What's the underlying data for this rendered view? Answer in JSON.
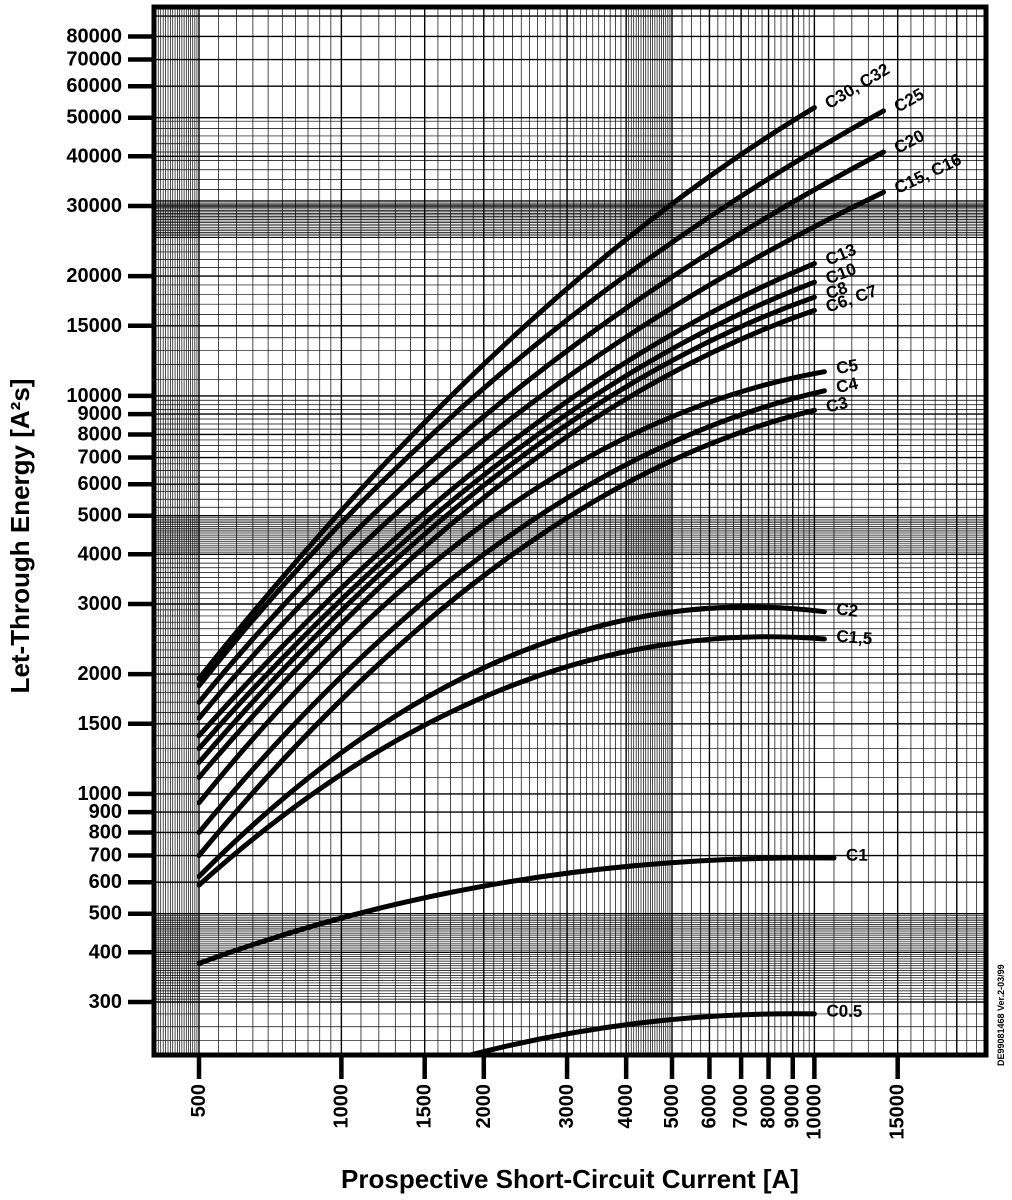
{
  "chart_data": {
    "type": "line",
    "title": "",
    "xlabel": "Prospective Short-Circuit Current [A]",
    "ylabel": "Let-Through Energy [A²s]",
    "note": "DE99081468 Ver.2-03/99",
    "x_scale": "log",
    "y_scale": "log",
    "xlim": [
      400,
      23300
    ],
    "ylim": [
      218,
      96000
    ],
    "grid": "on",
    "x_ticks": [
      500,
      1000,
      1500,
      2000,
      3000,
      4000,
      5000,
      6000,
      7000,
      8000,
      9000,
      10000,
      15000
    ],
    "y_ticks": [
      300,
      400,
      500,
      600,
      700,
      800,
      900,
      1000,
      1500,
      2000,
      3000,
      4000,
      5000,
      6000,
      7000,
      8000,
      9000,
      10000,
      15000,
      20000,
      30000,
      40000,
      50000,
      60000,
      70000,
      80000
    ],
    "x_major_grid": [
      400,
      500,
      1000,
      1500,
      2000,
      3000,
      4000,
      5000,
      6000,
      7000,
      8000,
      9000,
      10000,
      15000,
      20000
    ],
    "x_minor_ranges": [
      [
        400,
        500,
        5
      ],
      [
        500,
        1000,
        50
      ],
      [
        1000,
        2000,
        100
      ],
      [
        2000,
        4000,
        100
      ],
      [
        4000,
        5000,
        50
      ],
      [
        5000,
        10000,
        250
      ],
      [
        10000,
        23300,
        1000
      ]
    ],
    "y_major_grid": [
      300,
      400,
      500,
      600,
      700,
      800,
      900,
      1000,
      1500,
      2000,
      3000,
      4000,
      5000,
      6000,
      7000,
      8000,
      9000,
      10000,
      15000,
      20000,
      30000,
      40000,
      50000,
      60000,
      70000,
      80000,
      90000
    ],
    "y_minor_ranges": [
      [
        220,
        300,
        20
      ],
      [
        300,
        500,
        5
      ],
      [
        1000,
        2000,
        100
      ],
      [
        2000,
        4000,
        100
      ],
      [
        4000,
        5000,
        50
      ],
      [
        5000,
        10000,
        250
      ],
      [
        10000,
        25000,
        1000
      ],
      [
        25000,
        31000,
        250
      ],
      [
        31000,
        50000,
        2000
      ],
      [
        50000,
        96000,
        10000
      ]
    ],
    "series": [
      {
        "label": "C30, C32",
        "points": [
          [
            500,
            1950
          ],
          [
            2236,
            13600
          ],
          [
            10000,
            53000
          ]
        ]
      },
      {
        "label": "C25",
        "points": [
          [
            500,
            1870
          ],
          [
            2236,
            11700
          ],
          [
            14000,
            52000
          ]
        ]
      },
      {
        "label": "C20",
        "points": [
          [
            500,
            1700
          ],
          [
            2236,
            9900
          ],
          [
            14000,
            41000
          ]
        ]
      },
      {
        "label": "C15, C16",
        "points": [
          [
            500,
            1550
          ],
          [
            2236,
            8600
          ],
          [
            14000,
            32500
          ]
        ]
      },
      {
        "label": "C13",
        "points": [
          [
            500,
            1400
          ],
          [
            2236,
            7500
          ],
          [
            10000,
            21500
          ]
        ]
      },
      {
        "label": "C10",
        "points": [
          [
            500,
            1300
          ],
          [
            2236,
            7000
          ],
          [
            10000,
            19300
          ]
        ]
      },
      {
        "label": "C8",
        "points": [
          [
            500,
            1200
          ],
          [
            2236,
            6600
          ],
          [
            10000,
            17700
          ]
        ]
      },
      {
        "label": "C6, C7",
        "points": [
          [
            500,
            1100
          ],
          [
            2236,
            6150
          ],
          [
            10000,
            16400
          ]
        ]
      },
      {
        "label": "C5",
        "points": [
          [
            500,
            950
          ],
          [
            2236,
            5230
          ],
          [
            10500,
            11500
          ]
        ]
      },
      {
        "label": "C4",
        "points": [
          [
            500,
            800
          ],
          [
            2236,
            4400
          ],
          [
            10500,
            10300
          ]
        ]
      },
      {
        "label": "C3",
        "points": [
          [
            500,
            700
          ],
          [
            2236,
            3900
          ],
          [
            10000,
            9200
          ]
        ]
      },
      {
        "label": "C2",
        "points": [
          [
            500,
            620
          ],
          [
            2236,
            2200
          ],
          [
            10500,
            2870
          ]
        ]
      },
      {
        "label": "C1,5",
        "points": [
          [
            500,
            590
          ],
          [
            2236,
            1850
          ],
          [
            10500,
            2450
          ]
        ]
      },
      {
        "label": "C1",
        "points": [
          [
            500,
            375
          ],
          [
            2236,
            600
          ],
          [
            11000,
            690
          ]
        ]
      },
      {
        "label": "C0.5",
        "points": [
          [
            1800,
            218
          ],
          [
            4200,
            265
          ],
          [
            10000,
            280
          ]
        ]
      }
    ],
    "colors": {
      "curve": "#000000",
      "grid": "#000000",
      "frame": "#000000",
      "text": "#000000",
      "background": "#ffffff"
    }
  }
}
